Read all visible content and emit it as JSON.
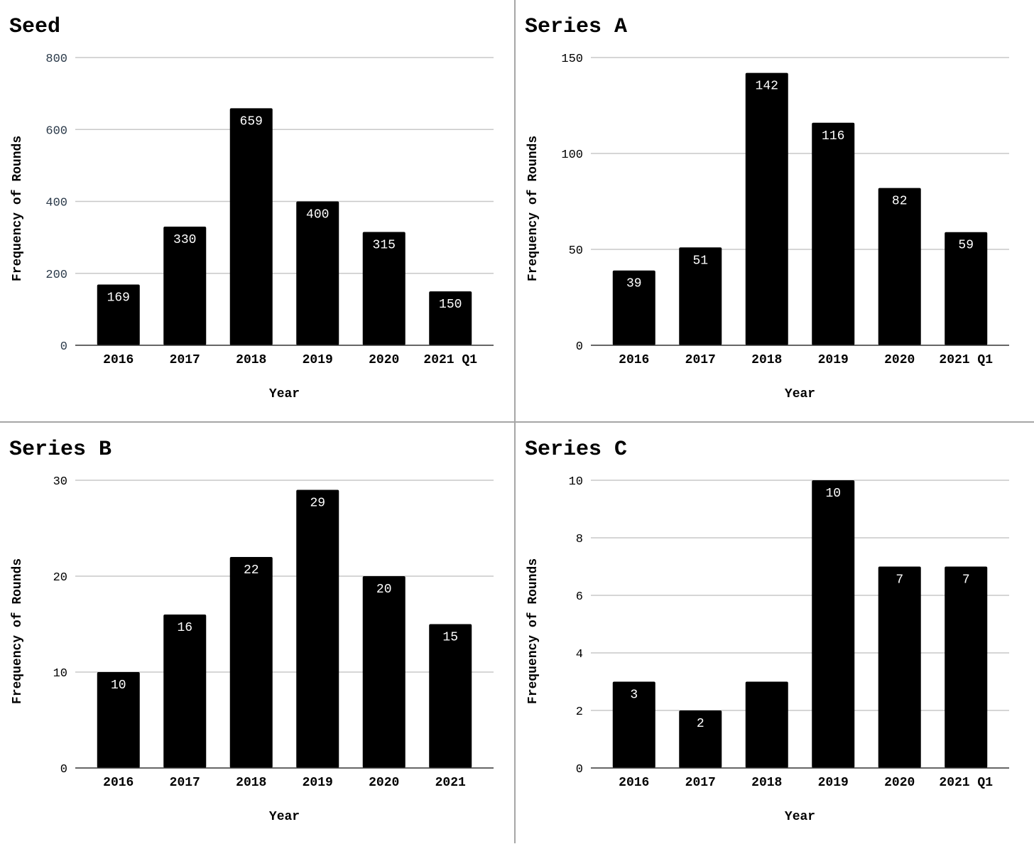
{
  "chart_data": [
    {
      "type": "bar",
      "title": "Seed",
      "xlabel": "Year",
      "ylabel": "Frequency of Rounds",
      "categories": [
        "2016",
        "2017",
        "2018",
        "2019",
        "2020",
        "2021 Q1"
      ],
      "values": [
        169,
        330,
        659,
        400,
        315,
        150
      ],
      "data_labels": [
        "169",
        "330",
        "659",
        "400",
        "315",
        "150"
      ],
      "ylim": [
        0,
        800
      ],
      "yticks": [
        "0",
        "200",
        "400",
        "600",
        "800"
      ],
      "ytick_values": [
        0,
        200,
        400,
        600,
        800
      ],
      "ytick_color": "#2b3a4a",
      "bar_color": "#000000",
      "grid": true
    },
    {
      "type": "bar",
      "title": "Series A",
      "xlabel": "Year",
      "ylabel": "Frequency of Rounds",
      "categories": [
        "2016",
        "2017",
        "2018",
        "2019",
        "2020",
        "2021 Q1"
      ],
      "values": [
        39,
        51,
        142,
        116,
        82,
        59
      ],
      "data_labels": [
        "39",
        "51",
        "142",
        "116",
        "82",
        "59"
      ],
      "ylim": [
        0,
        150
      ],
      "yticks": [
        "0",
        "50",
        "100",
        "150"
      ],
      "ytick_values": [
        0,
        50,
        100,
        150
      ],
      "ytick_color": "#000000",
      "bar_color": "#000000",
      "grid": true
    },
    {
      "type": "bar",
      "title": "Series B",
      "xlabel": "Year",
      "ylabel": "Frequency of Rounds",
      "categories": [
        "2016",
        "2017",
        "2018",
        "2019",
        "2020",
        "2021"
      ],
      "values": [
        10,
        16,
        22,
        29,
        20,
        15
      ],
      "data_labels": [
        "10",
        "16",
        "22",
        "29",
        "20",
        "15"
      ],
      "ylim": [
        0,
        30
      ],
      "yticks": [
        "0",
        "10",
        "20",
        "30"
      ],
      "ytick_values": [
        0,
        10,
        20,
        30
      ],
      "ytick_color": "#000000",
      "bar_color": "#000000",
      "grid": true
    },
    {
      "type": "bar",
      "title": "Series C",
      "xlabel": "Year",
      "ylabel": "Frequency of Rounds",
      "categories": [
        "2016",
        "2017",
        "2018",
        "2019",
        "2020",
        "2021 Q1"
      ],
      "values": [
        3,
        2,
        3,
        10,
        7,
        7
      ],
      "data_labels": [
        "3",
        "2",
        "",
        "10",
        "7",
        "7"
      ],
      "ylim": [
        0,
        10
      ],
      "yticks": [
        "0",
        "2",
        "4",
        "6",
        "8",
        "10"
      ],
      "ytick_values": [
        0,
        2,
        4,
        6,
        8,
        10
      ],
      "ytick_color": "#000000",
      "bar_color": "#000000",
      "grid": true
    }
  ]
}
